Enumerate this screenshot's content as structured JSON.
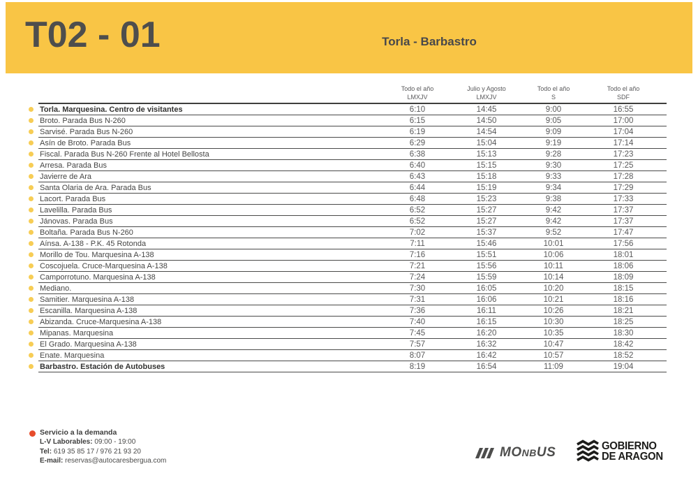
{
  "header": {
    "route_code": "T02 - 01",
    "route_name": "Torla - Barbastro"
  },
  "table": {
    "columns": [
      {
        "line1": "Todo el año",
        "line2": "LMXJV"
      },
      {
        "line1": "Julio y Agosto",
        "line2": "LMXJV"
      },
      {
        "line1": "Todo el año",
        "line2": "S"
      },
      {
        "line1": "Todo el año",
        "line2": "SDF"
      }
    ],
    "rows": [
      {
        "stop": "Torla. Marquesina. Centro de visitantes",
        "bold": true,
        "times": [
          "6:10",
          "14:45",
          "9:00",
          "16:55"
        ]
      },
      {
        "stop": "Broto. Parada Bus N-260",
        "bold": false,
        "times": [
          "6:15",
          "14:50",
          "9:05",
          "17:00"
        ]
      },
      {
        "stop": "Sarvisé. Parada Bus N-260",
        "bold": false,
        "times": [
          "6:19",
          "14:54",
          "9:09",
          "17:04"
        ]
      },
      {
        "stop": "Asín de Broto. Parada Bus",
        "bold": false,
        "times": [
          "6:29",
          "15:04",
          "9:19",
          "17:14"
        ]
      },
      {
        "stop": "Fiscal. Parada Bus N-260 Frente al Hotel Bellosta",
        "bold": false,
        "times": [
          "6:38",
          "15:13",
          "9:28",
          "17:23"
        ]
      },
      {
        "stop": "Arresa. Parada Bus",
        "bold": false,
        "times": [
          "6:40",
          "15:15",
          "9:30",
          "17:25"
        ]
      },
      {
        "stop": "Javierre de Ara",
        "bold": false,
        "times": [
          "6:43",
          "15:18",
          "9:33",
          "17:28"
        ]
      },
      {
        "stop": "Santa Olaria de Ara. Parada Bus",
        "bold": false,
        "times": [
          "6:44",
          "15:19",
          "9:34",
          "17:29"
        ]
      },
      {
        "stop": "Lacort. Parada Bus",
        "bold": false,
        "times": [
          "6:48",
          "15:23",
          "9:38",
          "17:33"
        ]
      },
      {
        "stop": "Lavelilla. Parada Bus",
        "bold": false,
        "times": [
          "6:52",
          "15:27",
          "9:42",
          "17:37"
        ]
      },
      {
        "stop": "Jánovas. Parada Bus",
        "bold": false,
        "times": [
          "6:52",
          "15:27",
          "9:42",
          "17:37"
        ]
      },
      {
        "stop": "Boltaña. Parada Bus N-260",
        "bold": false,
        "times": [
          "7:02",
          "15:37",
          "9:52",
          "17:47"
        ]
      },
      {
        "stop": "Aínsa. A-138 - P.K. 45 Rotonda",
        "bold": false,
        "times": [
          "7:11",
          "15:46",
          "10:01",
          "17:56"
        ]
      },
      {
        "stop": "Morillo de Tou. Marquesina A-138",
        "bold": false,
        "times": [
          "7:16",
          "15:51",
          "10:06",
          "18:01"
        ]
      },
      {
        "stop": "Coscojuela. Cruce-Marquesina A-138",
        "bold": false,
        "times": [
          "7:21",
          "15:56",
          "10:11",
          "18:06"
        ]
      },
      {
        "stop": "Camporrotuno. Marquesina A-138",
        "bold": false,
        "times": [
          "7:24",
          "15:59",
          "10:14",
          "18:09"
        ]
      },
      {
        "stop": "Mediano.",
        "bold": false,
        "times": [
          "7:30",
          "16:05",
          "10:20",
          "18:15"
        ]
      },
      {
        "stop": "Samitier. Marquesina A-138",
        "bold": false,
        "times": [
          "7:31",
          "16:06",
          "10:21",
          "18:16"
        ]
      },
      {
        "stop": "Escanilla. Marquesina A-138",
        "bold": false,
        "times": [
          "7:36",
          "16:11",
          "10:26",
          "18:21"
        ]
      },
      {
        "stop": "Abizanda. Cruce-Marquesina A-138",
        "bold": false,
        "times": [
          "7:40",
          "16:15",
          "10:30",
          "18:25"
        ]
      },
      {
        "stop": "Mipanas. Marquesina",
        "bold": false,
        "times": [
          "7:45",
          "16:20",
          "10:35",
          "18:30"
        ]
      },
      {
        "stop": "El Grado. Marquesina A-138",
        "bold": false,
        "times": [
          "7:57",
          "16:32",
          "10:47",
          "18:42"
        ]
      },
      {
        "stop": "Enate. Marquesina",
        "bold": false,
        "times": [
          "8:07",
          "16:42",
          "10:57",
          "18:52"
        ]
      },
      {
        "stop": "Barbastro. Estación de Autobuses",
        "bold": true,
        "times": [
          "8:19",
          "16:54",
          "11:09",
          "19:04"
        ]
      }
    ]
  },
  "footer": {
    "demand_service": {
      "title": "Servicio a la demanda",
      "lines": [
        {
          "label": "L-V Laborables:",
          "value": "09:00 - 19:00"
        },
        {
          "label": "Tel:",
          "value": "619 35 85 17 / 976 21 93 20"
        },
        {
          "label": "E-mail:",
          "value": "reservas@autocaresbergua.com"
        }
      ]
    },
    "logos": {
      "monbus_parts": [
        "MO",
        "NB",
        "US"
      ],
      "gobierno_line1": "GOBIERNO",
      "gobierno_line2": "DE ARAGON"
    }
  },
  "colors": {
    "banner_yellow": "#F9C545",
    "stop_dot_yellow": "#F7CD55",
    "demand_red": "#E74C2B",
    "text_dark": "#3E3E3D",
    "text_gray": "#59595B"
  }
}
